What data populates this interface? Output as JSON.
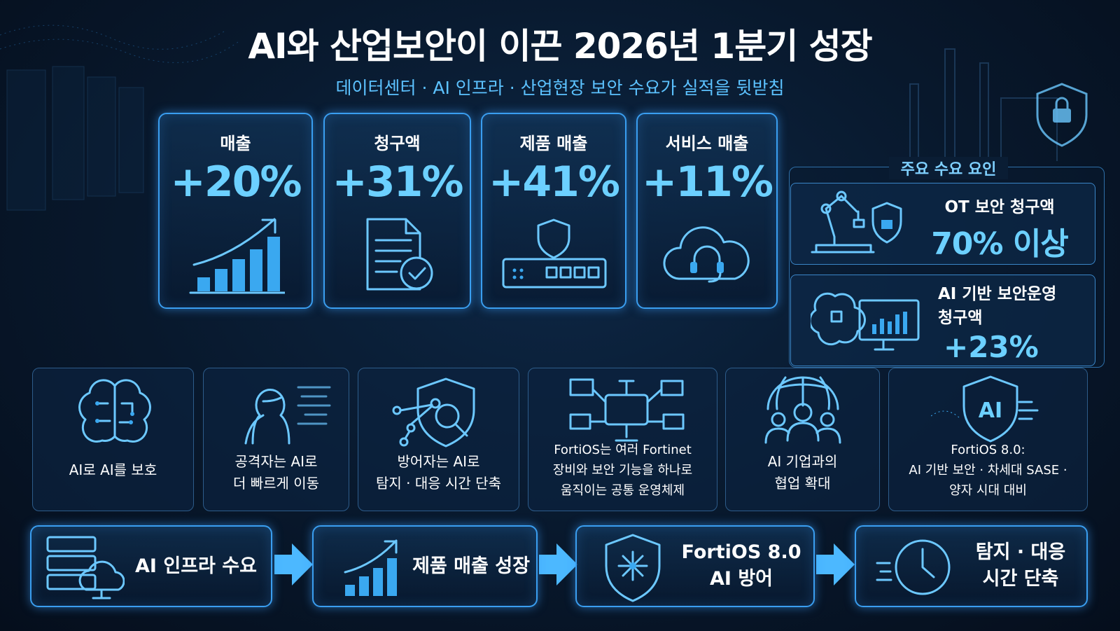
{
  "header": {
    "title": "AI와 산업보안이 이끈 2026년 1분기 성장",
    "subtitle": "데이터센터 · AI 인프라 · 산업현장 보안 수요가 실적을 뒷받침"
  },
  "metrics": [
    {
      "label": "매출",
      "value": "+20%"
    },
    {
      "label": "청구액",
      "value": "+31%"
    },
    {
      "label": "제품 매출",
      "value": "+41%"
    },
    {
      "label": "서비스 매출",
      "value": "+11%"
    }
  ],
  "drivers": {
    "title": "주요 수요 요인",
    "items": [
      {
        "label": [
          "OT 보안 청구액"
        ],
        "value": "70% 이상"
      },
      {
        "label": [
          "AI 기반 보안운영",
          "청구액"
        ],
        "value": "+23%"
      }
    ]
  },
  "themes": [
    {
      "lines": [
        "AI로 AI를 보호"
      ]
    },
    {
      "lines": [
        "공격자는 AI로",
        "더 빠르게 이동"
      ]
    },
    {
      "lines": [
        "방어자는 AI로",
        "탐지 · 대응 시간 단축"
      ]
    },
    {
      "lines": [
        "FortiOS는 여러 Fortinet",
        "장비와 보안 기능을 하나로",
        "움직이는 공통 운영체제"
      ]
    },
    {
      "lines": [
        "AI 기업과의",
        "협업 확대"
      ]
    },
    {
      "lines": [
        "FortiOS 8.0:",
        "AI 기반 보안 · 차세대 SASE ·",
        "양자 시대 대비"
      ]
    }
  ],
  "flow": [
    {
      "lines": [
        "AI 인프라 수요"
      ]
    },
    {
      "lines": [
        "제품 매출 성장"
      ]
    },
    {
      "lines": [
        "FortiOS 8.0",
        "AI 방어"
      ]
    },
    {
      "lines": [
        "탐지 · 대응",
        "시간 단축"
      ]
    }
  ]
}
